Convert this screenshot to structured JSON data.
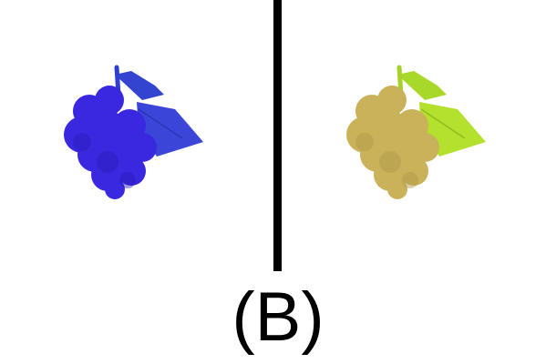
{
  "panel_label": "(B)",
  "grapes": {
    "left": {
      "icon": "grape-cluster-icon",
      "colors": {
        "berries": "#3a28e0",
        "berries_shade": "#2a1cb8",
        "leaf": "#3b45d8",
        "stem": "#2f3fd0"
      }
    },
    "right": {
      "icon": "grape-cluster-icon",
      "colors": {
        "berries": "#c9b25a",
        "berries_shade": "#b09848",
        "leaf": "#b4e02e",
        "stem": "#a6d22a"
      }
    }
  },
  "divider_color": "#000000"
}
